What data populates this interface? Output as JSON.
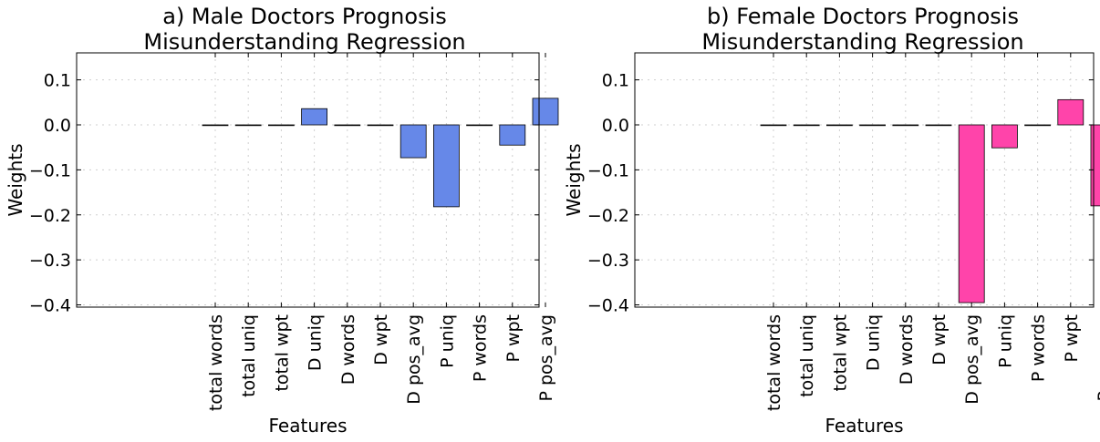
{
  "chart_data": [
    {
      "type": "bar",
      "title": [
        "a) Male Doctors Prognosis",
        "Misunderstanding Regression"
      ],
      "xlabel": "Features",
      "ylabel": "Weights",
      "ylim": [
        -0.405,
        0.16
      ],
      "yticks": [
        0.1,
        0.0,
        -0.1,
        -0.2,
        -0.3,
        -0.4
      ],
      "ytick_labels": [
        "0.1",
        "0.0",
        "−0.1",
        "−0.2",
        "−0.3",
        "−0.4"
      ],
      "grid": true,
      "bar_color": "#6688e8",
      "categories": [
        "total words",
        "total uniq",
        "total wpt",
        "D uniq",
        "D words",
        "D wpt",
        "D pos_avg",
        "P uniq",
        "P words",
        "P wpt",
        "P pos_avg"
      ],
      "values": [
        0.0,
        0.0,
        0.0,
        0.036,
        0.0,
        0.0,
        -0.073,
        -0.182,
        0.0,
        -0.045,
        0.059
      ]
    },
    {
      "type": "bar",
      "title": [
        "b) Female Doctors Prognosis",
        "Misunderstanding Regression"
      ],
      "xlabel": "Features",
      "ylabel": "Weights",
      "ylim": [
        -0.405,
        0.16
      ],
      "yticks": [
        0.1,
        0.0,
        -0.1,
        -0.2,
        -0.3,
        -0.4
      ],
      "ytick_labels": [
        "0.1",
        "0.0",
        "−0.1",
        "−0.2",
        "−0.3",
        "−0.4"
      ],
      "grid": true,
      "bar_color": "#ff44aa",
      "categories": [
        "total words",
        "total uniq",
        "total wpt",
        "D uniq",
        "D words",
        "D wpt",
        "D pos_avg",
        "P uniq",
        "P words",
        "P wpt",
        "P pos_avg"
      ],
      "values": [
        0.0,
        0.0,
        0.0,
        0.0,
        0.0,
        0.0,
        -0.395,
        -0.051,
        0.0,
        0.056,
        -0.18
      ]
    }
  ]
}
